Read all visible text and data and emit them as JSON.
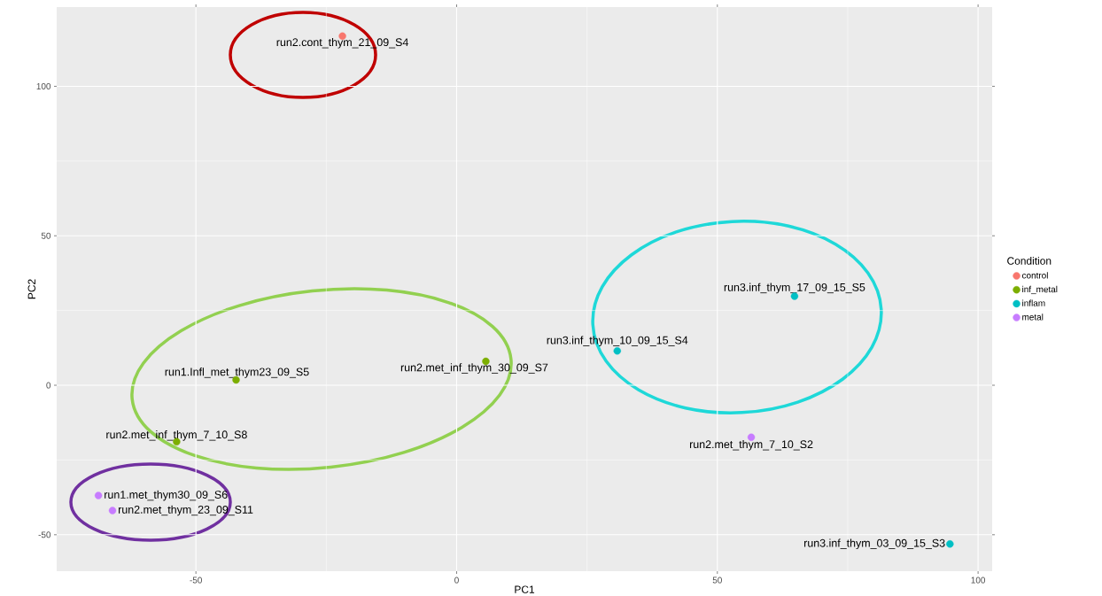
{
  "chart_data": {
    "type": "scatter",
    "xlabel": "PC1",
    "ylabel": "PC2",
    "legend_title": "Condition",
    "legend": "right",
    "grid": true,
    "xlim": [
      -76.7,
      102.7
    ],
    "ylim": [
      -62.2,
      126.5
    ],
    "xticks": [
      -50,
      0,
      50,
      100
    ],
    "yticks": [
      -50,
      0,
      50,
      100
    ],
    "series": [
      {
        "name": "control",
        "color": "#f8766d",
        "x": [
          -21.9
        ],
        "values": [
          116.8
        ]
      },
      {
        "name": "inf_metal",
        "color": "#7cae00",
        "x": [
          -42.3,
          5.6,
          -53.7
        ],
        "values": [
          1.8,
          8.0,
          -18.9
        ]
      },
      {
        "name": "inflam",
        "color": "#00bfc4",
        "x": [
          64.8,
          30.8,
          94.6
        ],
        "values": [
          29.8,
          11.5,
          -53.1
        ]
      },
      {
        "name": "metal",
        "color": "#c77cff",
        "x": [
          56.5,
          -68.7,
          -66.0
        ],
        "values": [
          -17.4,
          -36.9,
          -41.9
        ]
      }
    ],
    "annotations": [
      {
        "text": "run2.cont_thym_21_09_S4",
        "x": -21.9,
        "y": 116.8
      },
      {
        "text": "run1.Infl_met_thym23_09_S5",
        "x": -42.3,
        "y": 1.8
      },
      {
        "text": "run2.met_inf_thym_30_09_S7",
        "x": 5.6,
        "y": 8.0
      },
      {
        "text": "run2.met_inf_thym_7_10_S8",
        "x": -53.7,
        "y": -18.9
      },
      {
        "text": "run3.inf_thym_17_09_15_S5",
        "x": 64.8,
        "y": 29.8
      },
      {
        "text": "run3.inf_thym_10_09_15_S4",
        "x": 30.8,
        "y": 11.5
      },
      {
        "text": "run3.inf_thym_03_09_15_S3",
        "x": 94.6,
        "y": -53.1
      },
      {
        "text": "run2.met_thym_7_10_S2",
        "x": 56.5,
        "y": -17.4
      },
      {
        "text": "run1.met_thym30_09_S6",
        "x": -68.7,
        "y": -36.9
      },
      {
        "text": "run2.met_thym_23_09_S11",
        "x": -66.0,
        "y": -41.9
      }
    ]
  }
}
